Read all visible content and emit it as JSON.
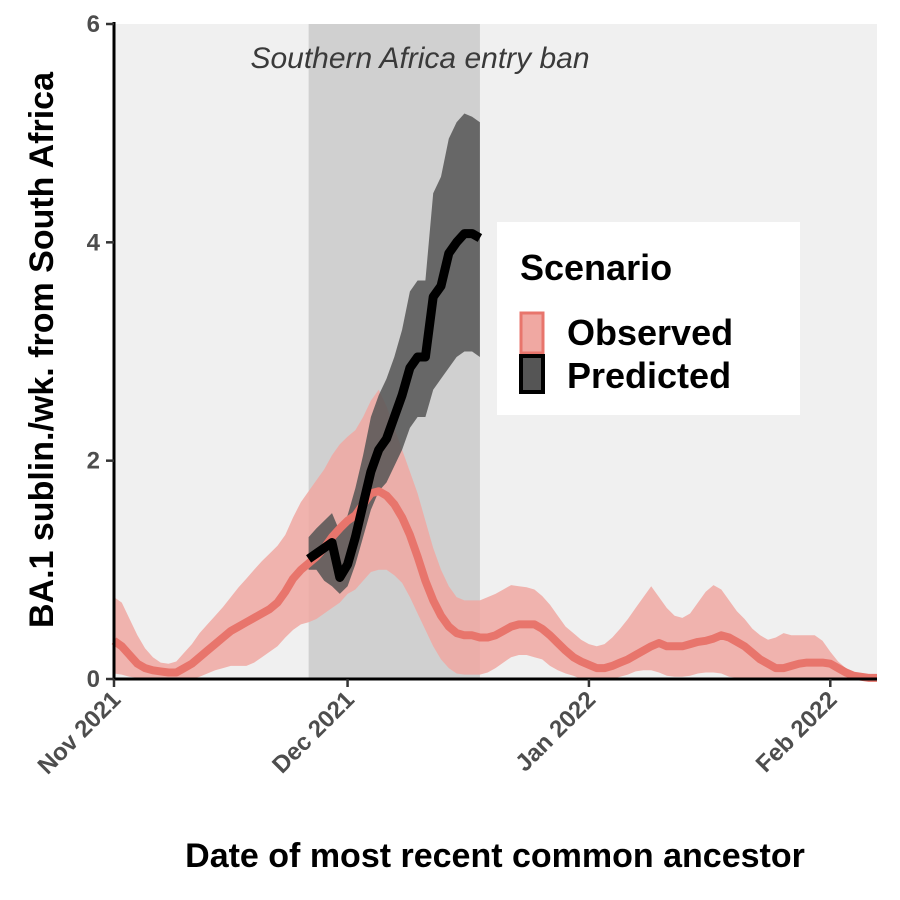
{
  "chart_data": {
    "type": "line",
    "title": "",
    "xlabel": "Date of most recent common ancestor",
    "ylabel": "BA.1 sublin./wk. from South Africa",
    "x_type": "date",
    "xlim": [
      "2021-11-01",
      "2022-02-07"
    ],
    "ylim": [
      0,
      6
    ],
    "y_ticks": [
      0,
      2,
      4,
      6
    ],
    "x_ticks": [
      {
        "date": "2021-11-01",
        "label": "Nov 2021"
      },
      {
        "date": "2021-12-01",
        "label": "Dec 2021"
      },
      {
        "date": "2022-01-01",
        "label": "Jan 2022"
      },
      {
        "date": "2022-02-01",
        "label": "Feb 2022"
      }
    ],
    "annotation": {
      "text": "Southern Africa entry ban",
      "x_start": "2021-11-26",
      "x_end": "2021-12-18"
    },
    "grid": false,
    "legend": {
      "title": "Scenario",
      "placement": "right",
      "entries": [
        "Observed",
        "Predicted"
      ]
    },
    "colors": {
      "observed_line": "#e8756c",
      "observed_ribbon": "#f0a8a2",
      "predicted_line": "#000000",
      "predicted_ribbon": "#555555",
      "panel_bg": "#f0f0f0",
      "ban_shade": "#d0d0d0"
    },
    "series": [
      {
        "name": "Observed",
        "x": [
          "2021-11-01",
          "2021-11-02",
          "2021-11-03",
          "2021-11-04",
          "2021-11-05",
          "2021-11-06",
          "2021-11-07",
          "2021-11-08",
          "2021-11-09",
          "2021-11-10",
          "2021-11-11",
          "2021-11-12",
          "2021-11-13",
          "2021-11-14",
          "2021-11-15",
          "2021-11-16",
          "2021-11-17",
          "2021-11-18",
          "2021-11-19",
          "2021-11-20",
          "2021-11-21",
          "2021-11-22",
          "2021-11-23",
          "2021-11-24",
          "2021-11-25",
          "2021-11-26",
          "2021-11-27",
          "2021-11-28",
          "2021-11-29",
          "2021-11-30",
          "2021-12-01",
          "2021-12-02",
          "2021-12-03",
          "2021-12-04",
          "2021-12-05",
          "2021-12-06",
          "2021-12-07",
          "2021-12-08",
          "2021-12-09",
          "2021-12-10",
          "2021-12-11",
          "2021-12-12",
          "2021-12-13",
          "2021-12-14",
          "2021-12-15",
          "2021-12-16",
          "2021-12-17",
          "2021-12-18",
          "2021-12-19",
          "2021-12-20",
          "2021-12-21",
          "2021-12-22",
          "2021-12-23",
          "2021-12-24",
          "2021-12-25",
          "2021-12-26",
          "2021-12-27",
          "2021-12-28",
          "2021-12-29",
          "2021-12-30",
          "2021-12-31",
          "2022-01-01",
          "2022-01-02",
          "2022-01-03",
          "2022-01-04",
          "2022-01-05",
          "2022-01-06",
          "2022-01-07",
          "2022-01-08",
          "2022-01-09",
          "2022-01-10",
          "2022-01-11",
          "2022-01-12",
          "2022-01-13",
          "2022-01-14",
          "2022-01-15",
          "2022-01-16",
          "2022-01-17",
          "2022-01-18",
          "2022-01-19",
          "2022-01-20",
          "2022-01-21",
          "2022-01-22",
          "2022-01-23",
          "2022-01-24",
          "2022-01-25",
          "2022-01-26",
          "2022-01-27",
          "2022-01-28",
          "2022-01-29",
          "2022-01-30",
          "2022-01-31",
          "2022-02-01",
          "2022-02-02",
          "2022-02-03",
          "2022-02-04",
          "2022-02-05",
          "2022-02-06",
          "2022-02-07"
        ],
        "y": [
          0.35,
          0.3,
          0.22,
          0.14,
          0.1,
          0.08,
          0.07,
          0.06,
          0.06,
          0.1,
          0.14,
          0.2,
          0.26,
          0.32,
          0.38,
          0.44,
          0.48,
          0.52,
          0.56,
          0.6,
          0.64,
          0.7,
          0.8,
          0.92,
          1.0,
          1.06,
          1.12,
          1.2,
          1.3,
          1.38,
          1.45,
          1.5,
          1.6,
          1.7,
          1.72,
          1.68,
          1.6,
          1.48,
          1.32,
          1.12,
          0.9,
          0.72,
          0.58,
          0.48,
          0.42,
          0.4,
          0.4,
          0.38,
          0.38,
          0.4,
          0.44,
          0.48,
          0.5,
          0.5,
          0.5,
          0.46,
          0.4,
          0.33,
          0.26,
          0.2,
          0.16,
          0.13,
          0.1,
          0.1,
          0.12,
          0.15,
          0.18,
          0.22,
          0.26,
          0.3,
          0.33,
          0.3,
          0.3,
          0.3,
          0.32,
          0.34,
          0.35,
          0.37,
          0.4,
          0.38,
          0.34,
          0.3,
          0.24,
          0.18,
          0.14,
          0.1,
          0.1,
          0.12,
          0.14,
          0.15,
          0.15,
          0.15,
          0.14,
          0.1,
          0.06,
          0.03,
          0.02,
          0.01,
          0.01
        ],
        "lower": [
          0.05,
          0.04,
          0.02,
          0.01,
          0.0,
          0.0,
          0.0,
          0.0,
          0.0,
          0.0,
          0.0,
          0.02,
          0.05,
          0.08,
          0.1,
          0.12,
          0.12,
          0.12,
          0.15,
          0.2,
          0.25,
          0.3,
          0.38,
          0.45,
          0.5,
          0.52,
          0.55,
          0.6,
          0.65,
          0.7,
          0.78,
          0.82,
          0.9,
          0.98,
          1.0,
          1.0,
          0.95,
          0.88,
          0.75,
          0.6,
          0.45,
          0.3,
          0.18,
          0.1,
          0.05,
          0.04,
          0.04,
          0.04,
          0.06,
          0.1,
          0.15,
          0.2,
          0.22,
          0.22,
          0.2,
          0.18,
          0.12,
          0.08,
          0.05,
          0.03,
          0.0,
          0.0,
          0.0,
          0.0,
          0.0,
          0.02,
          0.04,
          0.07,
          0.08,
          0.08,
          0.06,
          0.03,
          0.02,
          0.02,
          0.03,
          0.05,
          0.06,
          0.06,
          0.05,
          0.02,
          0.01,
          0.0,
          0.0,
          0.0,
          0.0,
          0.0,
          0.0,
          0.0,
          0.0,
          0.0,
          0.0,
          0.0,
          0.0,
          0.0,
          0.0,
          0.0,
          0.0,
          0.0,
          0.0
        ],
        "upper": [
          0.75,
          0.7,
          0.55,
          0.4,
          0.28,
          0.2,
          0.15,
          0.14,
          0.16,
          0.24,
          0.32,
          0.42,
          0.5,
          0.58,
          0.66,
          0.75,
          0.84,
          0.92,
          1.0,
          1.08,
          1.15,
          1.22,
          1.32,
          1.48,
          1.62,
          1.72,
          1.82,
          1.92,
          2.05,
          2.15,
          2.22,
          2.28,
          2.4,
          2.55,
          2.65,
          2.5,
          2.3,
          2.1,
          1.9,
          1.7,
          1.45,
          1.2,
          1.0,
          0.85,
          0.75,
          0.72,
          0.72,
          0.72,
          0.75,
          0.78,
          0.82,
          0.86,
          0.85,
          0.84,
          0.82,
          0.76,
          0.68,
          0.58,
          0.48,
          0.42,
          0.36,
          0.32,
          0.3,
          0.32,
          0.38,
          0.46,
          0.55,
          0.65,
          0.75,
          0.85,
          0.75,
          0.65,
          0.58,
          0.56,
          0.6,
          0.7,
          0.8,
          0.86,
          0.82,
          0.72,
          0.62,
          0.55,
          0.46,
          0.4,
          0.36,
          0.38,
          0.42,
          0.4,
          0.4,
          0.4,
          0.4,
          0.35,
          0.25,
          0.16,
          0.1,
          0.05,
          0.03,
          0.02,
          0.02
        ]
      },
      {
        "name": "Predicted",
        "x": [
          "2021-11-26",
          "2021-11-27",
          "2021-11-28",
          "2021-11-29",
          "2021-11-30",
          "2021-12-01",
          "2021-12-02",
          "2021-12-03",
          "2021-12-04",
          "2021-12-05",
          "2021-12-06",
          "2021-12-07",
          "2021-12-08",
          "2021-12-09",
          "2021-12-10",
          "2021-12-11",
          "2021-12-12",
          "2021-12-13",
          "2021-12-14",
          "2021-12-15",
          "2021-12-16",
          "2021-12-17",
          "2021-12-18"
        ],
        "y": [
          1.1,
          1.15,
          1.2,
          1.25,
          0.93,
          1.05,
          1.3,
          1.6,
          1.9,
          2.1,
          2.2,
          2.4,
          2.6,
          2.85,
          2.95,
          2.95,
          3.5,
          3.6,
          3.9,
          4.0,
          4.08,
          4.08,
          4.04
        ],
        "lower": [
          1.0,
          1.0,
          0.9,
          0.85,
          0.78,
          0.85,
          1.05,
          1.3,
          1.55,
          1.72,
          1.8,
          1.95,
          2.1,
          2.3,
          2.4,
          2.4,
          2.65,
          2.75,
          2.85,
          2.95,
          3.0,
          3.0,
          2.95
        ],
        "upper": [
          1.3,
          1.38,
          1.45,
          1.52,
          1.35,
          1.5,
          1.75,
          2.05,
          2.4,
          2.6,
          2.75,
          2.95,
          3.2,
          3.55,
          3.65,
          3.65,
          4.45,
          4.6,
          4.95,
          5.1,
          5.18,
          5.15,
          5.1
        ]
      }
    ]
  }
}
